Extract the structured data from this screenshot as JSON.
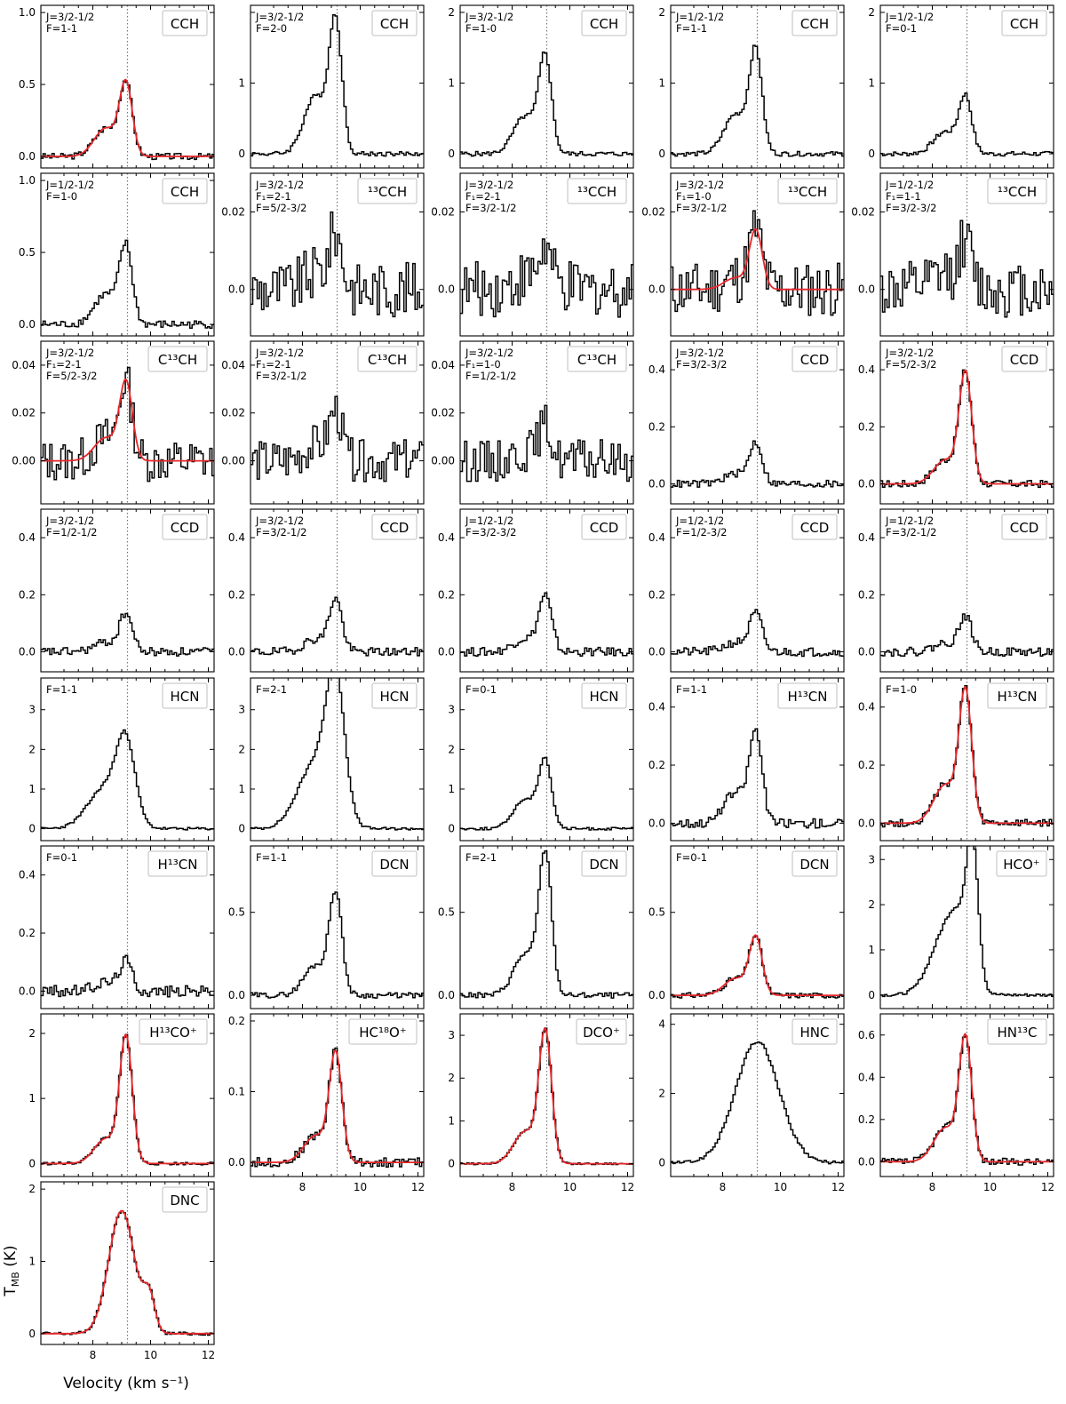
{
  "axes": {
    "xlabel": "Velocity  (km s⁻¹)",
    "ylabel": "T_MB  (K)",
    "xlim": [
      6.2,
      12.2
    ],
    "xticks": [
      8,
      10,
      12
    ],
    "vsys": 9.2
  },
  "chart_data": [
    {
      "type": "line",
      "molecule": "CCH",
      "qn": [
        "J=3/2-1/2",
        "F=1-1"
      ],
      "ylim": [
        -0.08,
        1.05
      ],
      "yticks": [
        0.0,
        0.5,
        1.0
      ],
      "ytick_labels": [
        "0.0",
        "0.5",
        "1.0"
      ],
      "peak": 0.49,
      "shoulder": 0.4,
      "noise": 0.02,
      "fit": true
    },
    {
      "type": "line",
      "molecule": "CCH",
      "qn": [
        "J=3/2-1/2",
        "F=2-0"
      ],
      "ylim": [
        -0.2,
        2.1
      ],
      "yticks": [
        0,
        1,
        2
      ],
      "ytick_labels": [
        "0",
        "1",
        ""
      ],
      "peak": 1.8,
      "shoulder": 0.45,
      "noise": 0.03,
      "fit": false
    },
    {
      "type": "line",
      "molecule": "CCH",
      "qn": [
        "J=3/2-1/2",
        "F=1-0"
      ],
      "ylim": [
        -0.2,
        2.1
      ],
      "yticks": [
        0,
        1,
        2
      ],
      "ytick_labels": [
        "0",
        "1",
        "2"
      ],
      "peak": 1.32,
      "shoulder": 0.4,
      "noise": 0.03,
      "fit": false
    },
    {
      "type": "line",
      "molecule": "CCH",
      "qn": [
        "J=1/2-1/2",
        "F=1-1"
      ],
      "ylim": [
        -0.2,
        2.1
      ],
      "yticks": [
        0,
        1,
        2
      ],
      "ytick_labels": [
        "0",
        "1",
        "2"
      ],
      "peak": 1.4,
      "shoulder": 0.4,
      "noise": 0.03,
      "fit": false
    },
    {
      "type": "line",
      "molecule": "CCH",
      "qn": [
        "J=1/2-1/2",
        "F=0-1"
      ],
      "ylim": [
        -0.2,
        2.1
      ],
      "yticks": [
        0,
        1,
        2
      ],
      "ytick_labels": [
        "0",
        "1",
        "2"
      ],
      "peak": 0.78,
      "shoulder": 0.4,
      "noise": 0.03,
      "fit": false
    },
    {
      "type": "line",
      "molecule": "CCH",
      "qn": [
        "J=1/2-1/2",
        "F=1-0"
      ],
      "ylim": [
        -0.08,
        1.05
      ],
      "yticks": [
        0.0,
        0.5,
        1.0
      ],
      "ytick_labels": [
        "0.0",
        "0.5",
        "1.0"
      ],
      "peak": 0.52,
      "shoulder": 0.4,
      "noise": 0.025,
      "fit": false
    },
    {
      "type": "line",
      "molecule": "¹³CCH",
      "qn": [
        "J=3/2-1/2",
        "F₁=2-1",
        "F=5/2-3/2"
      ],
      "ylim": [
        -0.012,
        0.03
      ],
      "yticks": [
        0.0,
        0.02
      ],
      "ytick_labels": [
        "0.0",
        "0.02"
      ],
      "peak": 0.014,
      "shoulder": 0.3,
      "noise": 0.0065,
      "fit": false
    },
    {
      "type": "line",
      "molecule": "¹³CCH",
      "qn": [
        "J=3/2-1/2",
        "F₁=2-1",
        "F=3/2-1/2"
      ],
      "ylim": [
        -0.012,
        0.03
      ],
      "yticks": [
        0.0,
        0.02
      ],
      "ytick_labels": [
        "0.0",
        "0.02"
      ],
      "peak": 0.01,
      "shoulder": 0.3,
      "noise": 0.0065,
      "fit": false
    },
    {
      "type": "line",
      "molecule": "¹³CCH",
      "qn": [
        "J=3/2-1/2",
        "F₁=1-0",
        "F=3/2-1/2"
      ],
      "ylim": [
        -0.012,
        0.03
      ],
      "yticks": [
        0.0,
        0.02
      ],
      "ytick_labels": [
        "0.0",
        "0.02"
      ],
      "peak": 0.015,
      "shoulder": 0.2,
      "noise": 0.0065,
      "fit": true
    },
    {
      "type": "line",
      "molecule": "¹³CCH",
      "qn": [
        "J=1/2-1/2",
        "F₁=1-1",
        "F=3/2-3/2"
      ],
      "ylim": [
        -0.012,
        0.03
      ],
      "yticks": [
        0.0,
        0.02
      ],
      "ytick_labels": [
        "0.0",
        "0.02"
      ],
      "peak": 0.012,
      "shoulder": 0.3,
      "noise": 0.0065,
      "fit": false
    },
    {
      "type": "line",
      "molecule": "C¹³CH",
      "qn": [
        "J=3/2-1/2",
        "F₁=2-1",
        "F=5/2-3/2"
      ],
      "ylim": [
        -0.018,
        0.05
      ],
      "yticks": [
        0.0,
        0.02,
        0.04
      ],
      "ytick_labels": [
        "0.00",
        "0.02",
        "0.04"
      ],
      "peak": 0.032,
      "shoulder": 0.3,
      "noise": 0.008,
      "fit": true
    },
    {
      "type": "line",
      "molecule": "C¹³CH",
      "qn": [
        "J=3/2-1/2",
        "F₁=2-1",
        "F=3/2-1/2"
      ],
      "ylim": [
        -0.018,
        0.05
      ],
      "yticks": [
        0.0,
        0.02,
        0.04
      ],
      "ytick_labels": [
        "0.00",
        "0.02",
        "0.04"
      ],
      "peak": 0.02,
      "shoulder": 0.3,
      "noise": 0.008,
      "fit": false
    },
    {
      "type": "line",
      "molecule": "C¹³CH",
      "qn": [
        "J=3/2-1/2",
        "F₁=1-0",
        "F=1/2-1/2"
      ],
      "ylim": [
        -0.018,
        0.05
      ],
      "yticks": [
        0.0,
        0.02,
        0.04
      ],
      "ytick_labels": [
        "0.00",
        "0.02",
        "0.04"
      ],
      "peak": 0.014,
      "shoulder": 0.3,
      "noise": 0.008,
      "fit": false
    },
    {
      "type": "line",
      "molecule": "CCD",
      "qn": [
        "J=3/2-1/2",
        "F=3/2-3/2"
      ],
      "ylim": [
        -0.07,
        0.5
      ],
      "yticks": [
        0.0,
        0.2,
        0.4
      ],
      "ytick_labels": [
        "0.0",
        "0.2",
        "0.4"
      ],
      "peak": 0.14,
      "shoulder": 0.25,
      "noise": 0.012,
      "fit": false
    },
    {
      "type": "line",
      "molecule": "CCD",
      "qn": [
        "J=3/2-1/2",
        "F=5/2-3/2"
      ],
      "ylim": [
        -0.07,
        0.5
      ],
      "yticks": [
        0.0,
        0.2,
        0.4
      ],
      "ytick_labels": [
        "0.0",
        "0.2",
        "0.4"
      ],
      "peak": 0.38,
      "shoulder": 0.22,
      "noise": 0.012,
      "fit": true
    },
    {
      "type": "line",
      "molecule": "CCD",
      "qn": [
        "J=3/2-1/2",
        "F=1/2-1/2"
      ],
      "ylim": [
        -0.07,
        0.5
      ],
      "yticks": [
        0.0,
        0.2,
        0.4
      ],
      "ytick_labels": [
        "0.0",
        "0.2",
        "0.4"
      ],
      "peak": 0.13,
      "shoulder": 0.25,
      "noise": 0.014,
      "fit": false
    },
    {
      "type": "line",
      "molecule": "CCD",
      "qn": [
        "J=3/2-1/2",
        "F=3/2-1/2"
      ],
      "ylim": [
        -0.07,
        0.5
      ],
      "yticks": [
        0.0,
        0.2,
        0.4
      ],
      "ytick_labels": [
        "0.0",
        "0.2",
        "0.4"
      ],
      "peak": 0.18,
      "shoulder": 0.25,
      "noise": 0.014,
      "fit": false
    },
    {
      "type": "line",
      "molecule": "CCD",
      "qn": [
        "J=1/2-1/2",
        "F=3/2-3/2"
      ],
      "ylim": [
        -0.07,
        0.5
      ],
      "yticks": [
        0.0,
        0.2,
        0.4
      ],
      "ytick_labels": [
        "0.0",
        "0.2",
        "0.4"
      ],
      "peak": 0.19,
      "shoulder": 0.25,
      "noise": 0.014,
      "fit": false
    },
    {
      "type": "line",
      "molecule": "CCD",
      "qn": [
        "J=1/2-1/2",
        "F=1/2-3/2"
      ],
      "ylim": [
        -0.07,
        0.5
      ],
      "yticks": [
        0.0,
        0.2,
        0.4
      ],
      "ytick_labels": [
        "0.0",
        "0.2",
        "0.4"
      ],
      "peak": 0.13,
      "shoulder": 0.25,
      "noise": 0.014,
      "fit": false
    },
    {
      "type": "line",
      "molecule": "CCD",
      "qn": [
        "J=1/2-1/2",
        "F=3/2-1/2"
      ],
      "ylim": [
        -0.07,
        0.5
      ],
      "yticks": [
        0.0,
        0.2,
        0.4
      ],
      "ytick_labels": [
        "0.0",
        "0.2",
        "0.4"
      ],
      "peak": 0.12,
      "shoulder": 0.25,
      "noise": 0.014,
      "fit": false
    },
    {
      "type": "line",
      "molecule": "HCN",
      "qn": [
        "F=1-1"
      ],
      "ylim": [
        -0.3,
        3.8
      ],
      "yticks": [
        0,
        1,
        2,
        3
      ],
      "ytick_labels": [
        "0",
        "1",
        "2",
        "3"
      ],
      "peak": 1.9,
      "shoulder": 0.55,
      "noise": 0.03,
      "fit": false,
      "wide": true
    },
    {
      "type": "line",
      "molecule": "HCN",
      "qn": [
        "F=2-1"
      ],
      "ylim": [
        -0.3,
        3.8
      ],
      "yticks": [
        0,
        1,
        2,
        3
      ],
      "ytick_labels": [
        "0",
        "1",
        "2",
        "3"
      ],
      "peak": 3.3,
      "shoulder": 0.5,
      "noise": 0.03,
      "fit": false,
      "wide": true
    },
    {
      "type": "line",
      "molecule": "HCN",
      "qn": [
        "F=0-1"
      ],
      "ylim": [
        -0.3,
        3.8
      ],
      "yticks": [
        0,
        1,
        2,
        3
      ],
      "ytick_labels": [
        "0",
        "1",
        "2",
        "3"
      ],
      "peak": 1.65,
      "shoulder": 0.45,
      "noise": 0.03,
      "fit": false
    },
    {
      "type": "line",
      "molecule": "H¹³CN",
      "qn": [
        "F=1-1"
      ],
      "ylim": [
        -0.06,
        0.5
      ],
      "yticks": [
        0.0,
        0.2,
        0.4
      ],
      "ytick_labels": [
        "0.0",
        "0.2",
        "0.4"
      ],
      "peak": 0.3,
      "shoulder": 0.35,
      "noise": 0.015,
      "fit": false
    },
    {
      "type": "line",
      "molecule": "H¹³CN",
      "qn": [
        "F=1-0"
      ],
      "ylim": [
        -0.06,
        0.5
      ],
      "yticks": [
        0.0,
        0.2,
        0.4
      ],
      "ytick_labels": [
        "0.0",
        "0.2",
        "0.4"
      ],
      "peak": 0.44,
      "shoulder": 0.3,
      "noise": 0.012,
      "fit": true
    },
    {
      "type": "line",
      "molecule": "H¹³CN",
      "qn": [
        "F=0-1"
      ],
      "ylim": [
        -0.06,
        0.5
      ],
      "yticks": [
        0.0,
        0.2,
        0.4
      ],
      "ytick_labels": [
        "0.0",
        "0.2",
        "0.4"
      ],
      "peak": 0.1,
      "shoulder": 0.3,
      "noise": 0.018,
      "fit": false
    },
    {
      "type": "line",
      "molecule": "DCN",
      "qn": [
        "F=1-1"
      ],
      "ylim": [
        -0.08,
        0.9
      ],
      "yticks": [
        0.0,
        0.5
      ],
      "ytick_labels": [
        "0.0",
        "0.5"
      ],
      "peak": 0.6,
      "shoulder": 0.3,
      "noise": 0.015,
      "fit": false
    },
    {
      "type": "line",
      "molecule": "DCN",
      "qn": [
        "F=2-1"
      ],
      "ylim": [
        -0.08,
        0.9
      ],
      "yticks": [
        0.0,
        0.5
      ],
      "ytick_labels": [
        "0.0",
        "0.5"
      ],
      "peak": 0.83,
      "shoulder": 0.3,
      "noise": 0.015,
      "fit": false
    },
    {
      "type": "line",
      "molecule": "DCN",
      "qn": [
        "F=0-1"
      ],
      "ylim": [
        -0.08,
        0.9
      ],
      "yticks": [
        0.0,
        0.5
      ],
      "ytick_labels": [
        "0.0",
        "0.5"
      ],
      "peak": 0.34,
      "shoulder": 0.3,
      "noise": 0.015,
      "fit": true
    },
    {
      "type": "line",
      "molecule": "HCO⁺",
      "qn": [],
      "ylim": [
        -0.3,
        3.3
      ],
      "yticks": [
        0,
        1,
        2,
        3
      ],
      "ytick_labels": [
        "0",
        "1",
        "2",
        "3"
      ],
      "peak": 2.8,
      "shoulder": 0.5,
      "noise": 0.03,
      "fit": false,
      "selfabs": true
    },
    {
      "type": "line",
      "molecule": "H¹³CO⁺",
      "qn": [],
      "ylim": [
        -0.2,
        2.3
      ],
      "yticks": [
        0,
        1,
        2
      ],
      "ytick_labels": [
        "0",
        "1",
        "2"
      ],
      "peak": 1.9,
      "shoulder": 0.2,
      "noise": 0.02,
      "fit": true
    },
    {
      "type": "line",
      "molecule": "HC¹⁸O⁺",
      "qn": [],
      "ylim": [
        -0.02,
        0.21
      ],
      "yticks": [
        0.0,
        0.1,
        0.2
      ],
      "ytick_labels": [
        "0.0",
        "0.1",
        "0.2"
      ],
      "peak": 0.15,
      "shoulder": 0.25,
      "noise": 0.006,
      "fit": true
    },
    {
      "type": "line",
      "molecule": "DCO⁺",
      "qn": [],
      "ylim": [
        -0.3,
        3.5
      ],
      "yticks": [
        0,
        1,
        2,
        3
      ],
      "ytick_labels": [
        "0",
        "1",
        "2",
        "3"
      ],
      "peak": 3.0,
      "shoulder": 0.25,
      "noise": 0.02,
      "fit": true
    },
    {
      "type": "line",
      "molecule": "HNC",
      "qn": [],
      "ylim": [
        -0.4,
        4.3
      ],
      "yticks": [
        0,
        2,
        4
      ],
      "ytick_labels": [
        "0",
        "2",
        "4"
      ],
      "peak": 3.5,
      "shoulder": 0.0,
      "noise": 0.04,
      "fit": false,
      "broad": true
    },
    {
      "type": "line",
      "molecule": "HN¹³C",
      "qn": [],
      "ylim": [
        -0.07,
        0.7
      ],
      "yticks": [
        0.0,
        0.2,
        0.4,
        0.6
      ],
      "ytick_labels": [
        "0.0",
        "0.2",
        "0.4",
        "0.6"
      ],
      "peak": 0.57,
      "shoulder": 0.28,
      "noise": 0.015,
      "fit": true
    },
    {
      "type": "line",
      "molecule": "DNC",
      "qn": [],
      "ylim": [
        -0.15,
        2.1
      ],
      "yticks": [
        0,
        1,
        2
      ],
      "ytick_labels": [
        "0",
        "1",
        "2"
      ],
      "peak": 1.7,
      "shoulder": 0.0,
      "noise": 0.02,
      "fit": true,
      "dnc": true
    }
  ]
}
